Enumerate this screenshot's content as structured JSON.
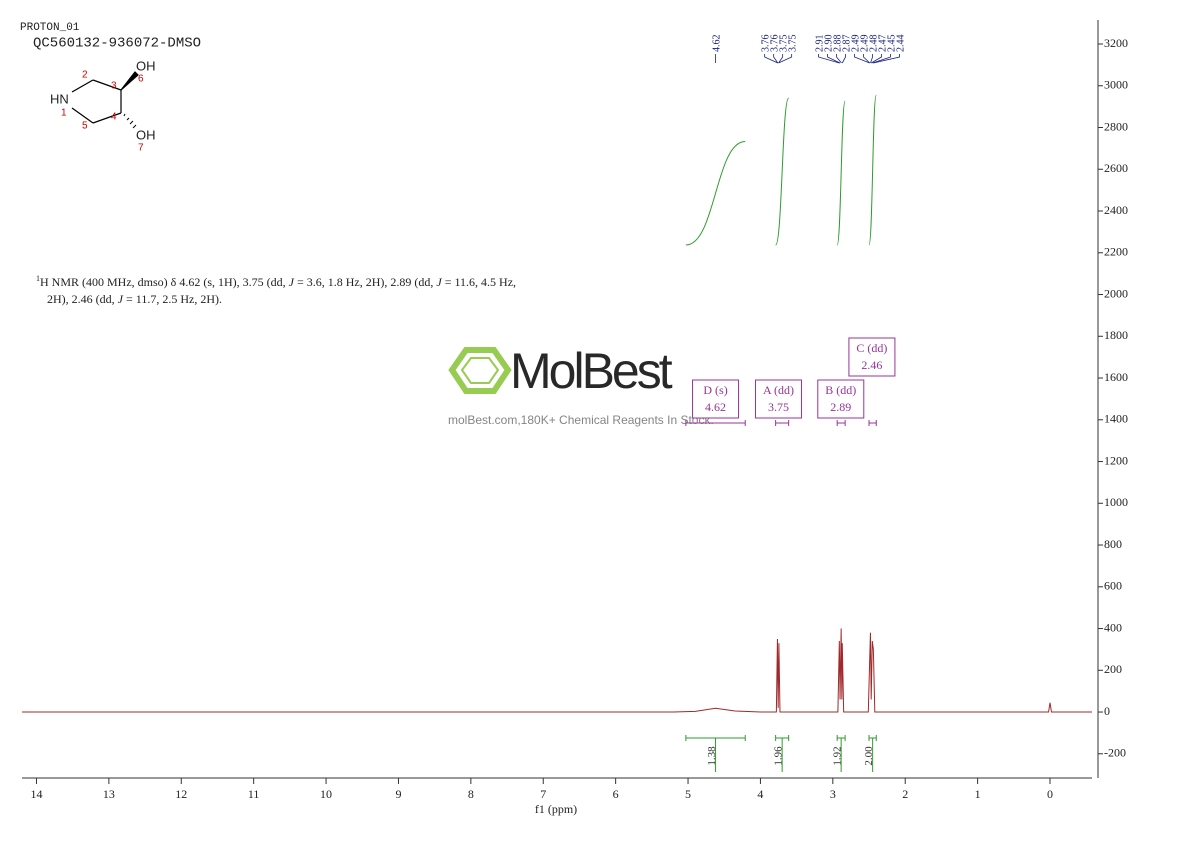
{
  "header": {
    "title": "PROTON_01",
    "sample": "QC560132-936072-DMSO"
  },
  "molecule": {
    "nh": "HN",
    "oh_top": "OH",
    "oh_bottom": "OH",
    "numbers": [
      "1",
      "2",
      "3",
      "4",
      "5",
      "6",
      "7"
    ]
  },
  "description": {
    "line1": [
      "1",
      "H NMR (400 MHz, dmso) δ 4.62 (s, 1H), 3.75 (dd, ",
      "J",
      " = 3.6, 1.8 Hz, 2H), 2.89 (dd, ",
      "J",
      " = 11.6, 4.5 Hz,"
    ],
    "line2": [
      "2H), 2.46 (dd, ",
      "J",
      " = 11.7, 2.5 Hz, 2H)."
    ]
  },
  "watermark": {
    "brand": "MolBest",
    "tagline": "molBest.com,180K+ Chemical Reagents In Stock."
  },
  "chart_data": {
    "type": "nmr",
    "xlabel": "f1 (ppm)",
    "xlim": [
      14.2,
      -0.58
    ],
    "xticks": [
      14,
      13,
      12,
      11,
      10,
      9,
      8,
      7,
      6,
      5,
      4,
      3,
      2,
      1,
      0
    ],
    "ylim": [
      -316,
      3315
    ],
    "yticks": [
      -200,
      0,
      200,
      400,
      600,
      800,
      1000,
      1200,
      1400,
      1600,
      1800,
      2000,
      2200,
      2400,
      2600,
      2800,
      3000,
      3200
    ],
    "color": "#a0282a",
    "x": [
      14.2,
      5.2,
      4.9,
      4.62,
      4.35,
      4.0,
      3.78,
      3.765,
      3.755,
      3.745,
      3.73,
      2.93,
      2.91,
      2.9,
      2.885,
      2.875,
      2.87,
      2.85,
      2.51,
      2.49,
      2.48,
      2.47,
      2.455,
      2.44,
      2.42,
      0.02,
      0,
      -0.02,
      -0.58
    ],
    "values": [
      0,
      0,
      3,
      18,
      5,
      0,
      0,
      350,
      20,
      330,
      0,
      0,
      340,
      60,
      400,
      60,
      330,
      0,
      0,
      260,
      380,
      60,
      340,
      300,
      0,
      0,
      45,
      0,
      0
    ],
    "peak_labels": [
      4.62,
      3.76,
      3.76,
      3.75,
      3.75,
      2.91,
      {
        "value": 2.9,
        "label": "2.90"
      },
      2.88,
      2.87,
      2.49,
      2.49,
      2.48,
      2.47,
      2.45,
      2.44
    ],
    "multiplets": [
      {
        "label": "D (s)",
        "shift": 4.62,
        "range": [
          5.03,
          4.21
        ],
        "integral": 1.38
      },
      {
        "label": "A (dd)",
        "shift": 3.75,
        "range": [
          3.79,
          3.61
        ],
        "integral": 1.96
      },
      {
        "label": "B (dd)",
        "shift": 2.89,
        "range": [
          2.94,
          2.83
        ],
        "integral": 1.92
      },
      {
        "label": "C (dd)",
        "shift": 2.46,
        "range": [
          2.5,
          2.4
        ],
        "integral": {
          "value": 2,
          "label": "2.00"
        }
      }
    ]
  }
}
